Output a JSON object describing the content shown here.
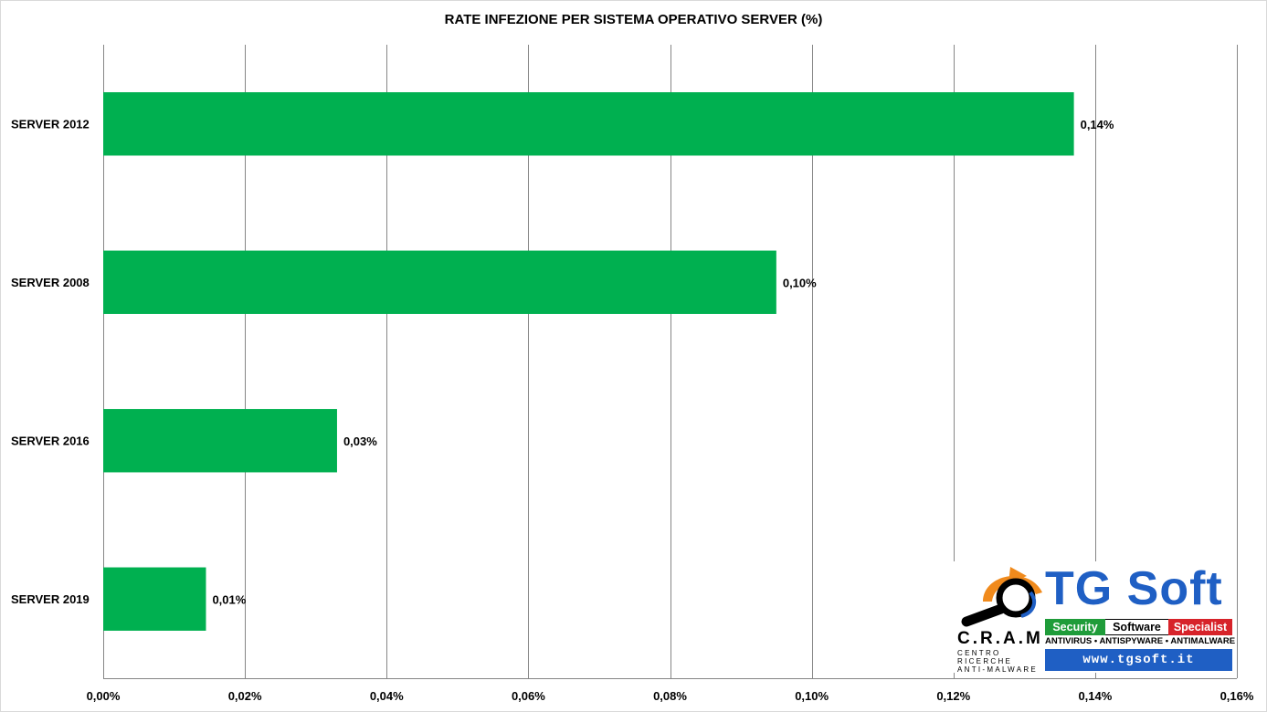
{
  "chart_data": {
    "type": "bar",
    "orientation": "horizontal",
    "title": "RATE INFEZIONE PER SISTEMA OPERATIVO SERVER (%)",
    "categories": [
      "SERVER 2012",
      "SERVER 2008",
      "SERVER 2016",
      "SERVER 2019"
    ],
    "values": [
      0.137,
      0.095,
      0.033,
      0.0145
    ],
    "data_labels": [
      "0,14%",
      "0,10%",
      "0,03%",
      "0,01%"
    ],
    "xlim": [
      0,
      0.16
    ],
    "x_ticks": [
      0,
      0.02,
      0.04,
      0.06,
      0.08,
      0.1,
      0.12,
      0.14,
      0.16
    ],
    "x_tick_labels": [
      "0,00%",
      "0,02%",
      "0,04%",
      "0,06%",
      "0,08%",
      "0,10%",
      "0,12%",
      "0,14%",
      "0,16%"
    ],
    "xlabel": "",
    "ylabel": "",
    "grid": "vertical",
    "legend": "none",
    "bar_color": "#00b050"
  },
  "logo": {
    "brand": "TG Soft",
    "bar_security": "Security",
    "bar_software": "Software",
    "bar_specialist": "Specialist",
    "tagline": "ANTIVIRUS • ANTISPYWARE • ANTIMALWARE",
    "url": "www.tgsoft.it",
    "cram": "C.R.A.M",
    "cram_line1": "CENTRO",
    "cram_line2": "RICERCHE",
    "cram_line3": "ANTI-MALWARE",
    "colors": {
      "blue": "#1f5fc4",
      "green": "#1f9c3a",
      "red": "#d7232a",
      "orange": "#f08a1c"
    }
  }
}
